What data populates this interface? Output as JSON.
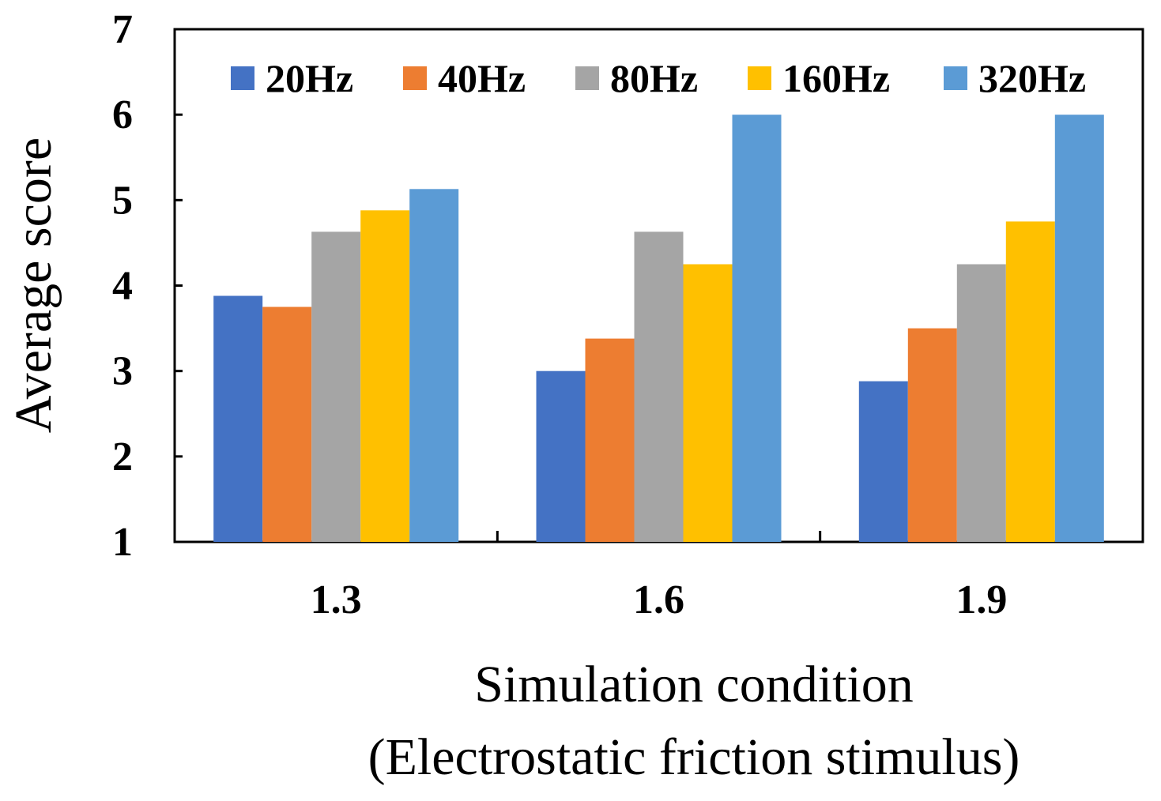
{
  "chart_data": {
    "type": "bar",
    "title": "",
    "xlabel": "Simulation condition",
    "xlabel_line2": "(Electrostatic friction stimulus)",
    "ylabel": "Average score",
    "ylim": [
      1,
      7
    ],
    "yticks": [
      1,
      2,
      3,
      4,
      5,
      6,
      7
    ],
    "categories": [
      "1.3",
      "1.6",
      "1.9"
    ],
    "grid": false,
    "legend_position": "top",
    "series": [
      {
        "name": "20Hz",
        "color": "#4472C4",
        "values": [
          3.88,
          3.0,
          2.88
        ]
      },
      {
        "name": "40Hz",
        "color": "#ED7D31",
        "values": [
          3.75,
          3.38,
          3.5
        ]
      },
      {
        "name": "80Hz",
        "color": "#A5A5A5",
        "values": [
          4.63,
          4.63,
          4.25
        ]
      },
      {
        "name": "160Hz",
        "color": "#FFC000",
        "values": [
          4.88,
          4.25,
          4.75
        ]
      },
      {
        "name": "320Hz",
        "color": "#5B9BD5",
        "values": [
          5.13,
          6.0,
          6.0
        ]
      }
    ]
  }
}
